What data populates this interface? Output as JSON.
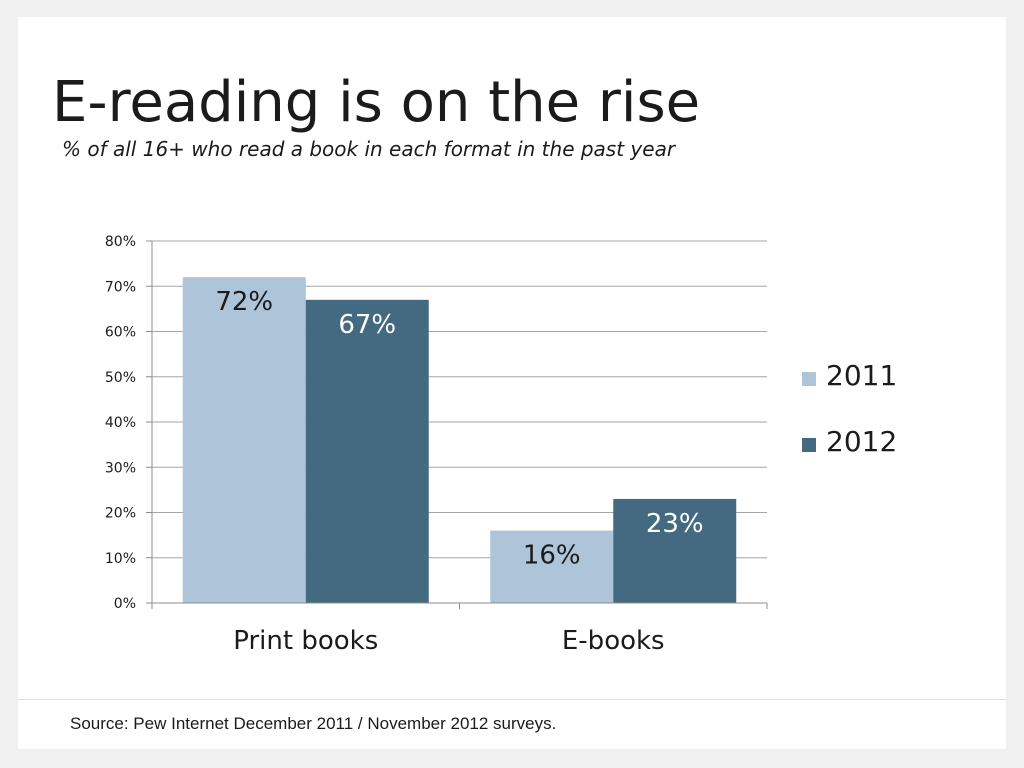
{
  "slide": {
    "title": "E-reading is on the rise",
    "subtitle": "% of all 16+ who read a book in each format in the past year",
    "source": "Source: Pew Internet December 2011 / November 2012 surveys."
  },
  "chart_data": {
    "type": "bar",
    "categories": [
      "Print books",
      "E-books"
    ],
    "series": [
      {
        "name": "2011",
        "values": [
          72,
          16
        ],
        "labels": [
          "72%",
          "16%"
        ],
        "color": "#adc4d9"
      },
      {
        "name": "2012",
        "values": [
          67,
          23
        ],
        "labels": [
          "67%",
          "23%"
        ],
        "color": "#446a82"
      }
    ],
    "ylim": [
      0,
      80
    ],
    "yticks": [
      0,
      10,
      20,
      30,
      40,
      50,
      60,
      70,
      80
    ],
    "ytick_labels": [
      "0%",
      "10%",
      "20%",
      "30%",
      "40%",
      "50%",
      "60%",
      "70%",
      "80%"
    ],
    "grid": true,
    "legend_position": "right",
    "data_label_colors": [
      "#1b1b1b",
      "#ffffff"
    ]
  }
}
